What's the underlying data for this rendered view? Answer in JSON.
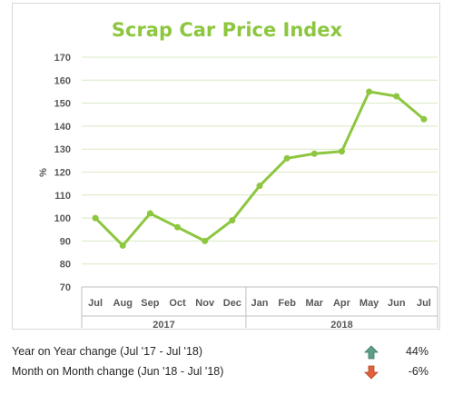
{
  "chart_data": {
    "type": "line",
    "title": "Scrap Car Price Index",
    "ylabel": "%",
    "ylim": [
      70,
      170
    ],
    "yticks": [
      70,
      80,
      90,
      100,
      110,
      120,
      130,
      140,
      150,
      160,
      170
    ],
    "categories": [
      "Jul",
      "Aug",
      "Sep",
      "Oct",
      "Nov",
      "Dec",
      "Jan",
      "Feb",
      "Mar",
      "Apr",
      "May",
      "Jun",
      "Jul"
    ],
    "groups": [
      {
        "label": "2017",
        "count": 6
      },
      {
        "label": "2018",
        "count": 7
      }
    ],
    "series": [
      {
        "values": [
          100,
          88,
          102,
          96,
          90,
          99,
          114,
          126,
          128,
          129,
          155,
          153,
          143
        ],
        "color": "#8dc63f"
      }
    ],
    "grid": true
  },
  "summary": {
    "yoy_label": "Year on Year change (Jul '17 - Jul '18)",
    "yoy_value": "44%",
    "yoy_direction": "up-arrow-icon",
    "yoy_color": "#5b9e8a",
    "mom_label": "Month on Month change (Jun '18 - Jul '18)",
    "mom_value": "-6%",
    "mom_direction": "down-arrow-icon",
    "mom_color": "#e0603a"
  }
}
